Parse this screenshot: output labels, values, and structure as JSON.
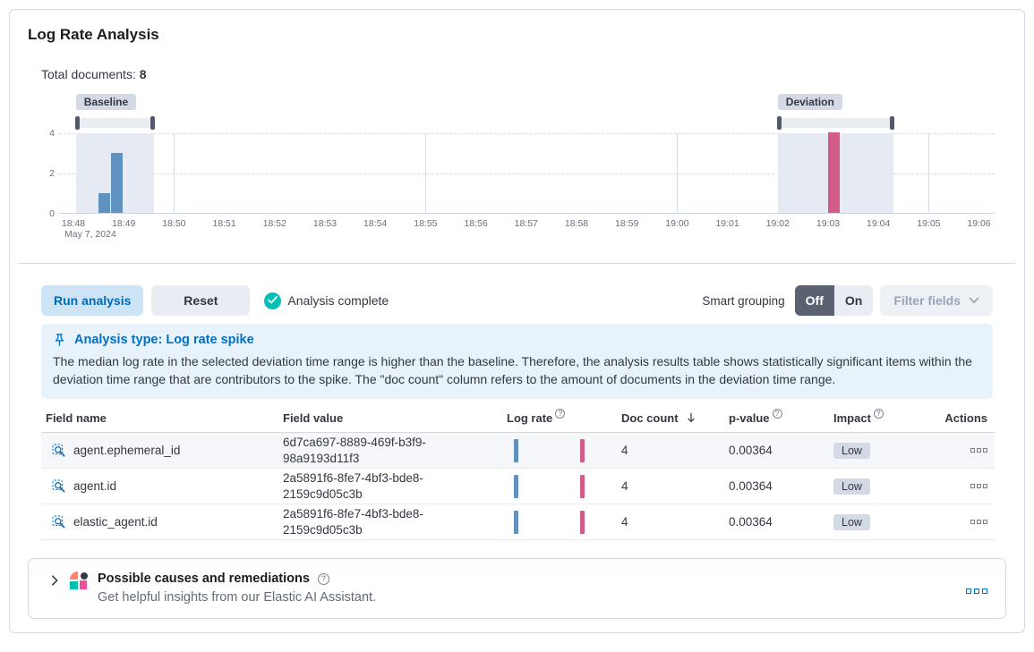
{
  "page": {
    "title": "Log Rate Analysis",
    "total_documents_label": "Total documents:",
    "total_documents_value": "8"
  },
  "chart_data": {
    "type": "bar",
    "x_date_label": "May 7, 2024",
    "x_tick_labels": [
      "18:48",
      "18:49",
      "18:50",
      "18:51",
      "18:52",
      "18:53",
      "18:54",
      "18:55",
      "18:56",
      "18:57",
      "18:58",
      "18:59",
      "19:00",
      "19:01",
      "19:02",
      "19:03",
      "19:04",
      "19:05",
      "19:06"
    ],
    "y_ticks": [
      0,
      2,
      4
    ],
    "ylim": [
      0,
      4
    ],
    "bucket_minutes": 0.25,
    "grid_vertical_ticks": [
      "18:50",
      "18:55",
      "19:00",
      "19:05"
    ],
    "series": [
      {
        "name": "Baseline",
        "color": "#6092c0",
        "points": [
          {
            "time": "18:48:30",
            "x_min": 0.5,
            "y": 1
          },
          {
            "time": "18:48:45",
            "x_min": 0.75,
            "y": 3
          }
        ]
      },
      {
        "name": "Deviation",
        "color": "#d25c87",
        "points": [
          {
            "time": "19:03:00",
            "x_min": 15,
            "y": 4
          }
        ]
      }
    ],
    "brushes": [
      {
        "label": "Baseline",
        "from_min": 0.05,
        "to_min": 1.6
      },
      {
        "label": "Deviation",
        "from_min": 14.0,
        "to_min": 16.3
      }
    ],
    "total_documents": 8
  },
  "toolbar": {
    "run_analysis_label": "Run analysis",
    "reset_label": "Reset",
    "status_label": "Analysis complete",
    "smart_grouping_label": "Smart grouping",
    "toggle_off_label": "Off",
    "toggle_on_label": "On",
    "filter_fields_label": "Filter fields"
  },
  "callout": {
    "title": "Analysis type: Log rate spike",
    "body": "The median log rate in the selected deviation time range is higher than the baseline. Therefore, the analysis results table shows statistically significant items within the deviation time range that are contributors to the spike. The \"doc count\" column refers to the amount of documents in the deviation time range."
  },
  "table": {
    "columns": {
      "field_name": "Field name",
      "field_value": "Field value",
      "log_rate": "Log rate",
      "doc_count": "Doc count",
      "p_value": "p-value",
      "impact": "Impact",
      "actions": "Actions"
    },
    "rows": [
      {
        "field_name": "agent.ephemeral_id",
        "field_value": "6d7ca697-8889-469f-b3f9-98a9193d11f3",
        "doc_count": "4",
        "p_value": "0.00364",
        "impact": "Low"
      },
      {
        "field_name": "agent.id",
        "field_value": "2a5891f6-8fe7-4bf3-bde8-2159c9d05c3b",
        "doc_count": "4",
        "p_value": "0.00364",
        "impact": "Low"
      },
      {
        "field_name": "elastic_agent.id",
        "field_value": "2a5891f6-8fe7-4bf3-bde8-2159c9d05c3b",
        "doc_count": "4",
        "p_value": "0.00364",
        "impact": "Low"
      }
    ]
  },
  "insights_panel": {
    "title": "Possible causes and remediations",
    "subtitle": "Get helpful insights from our Elastic AI Assistant."
  },
  "colors": {
    "baseline_bar": "#6092c0",
    "deviation_bar": "#d25c87",
    "accent_blue": "#0071c2",
    "primary_button_bg": "#cce4f5",
    "primary_button_text": "#006bb8",
    "success_teal": "#00bfb3",
    "callout_bg": "#e7f2fb",
    "badge_bg": "#d3dae6",
    "brush_handle": "#535966",
    "toggle_off_bg": "#5a6271"
  }
}
